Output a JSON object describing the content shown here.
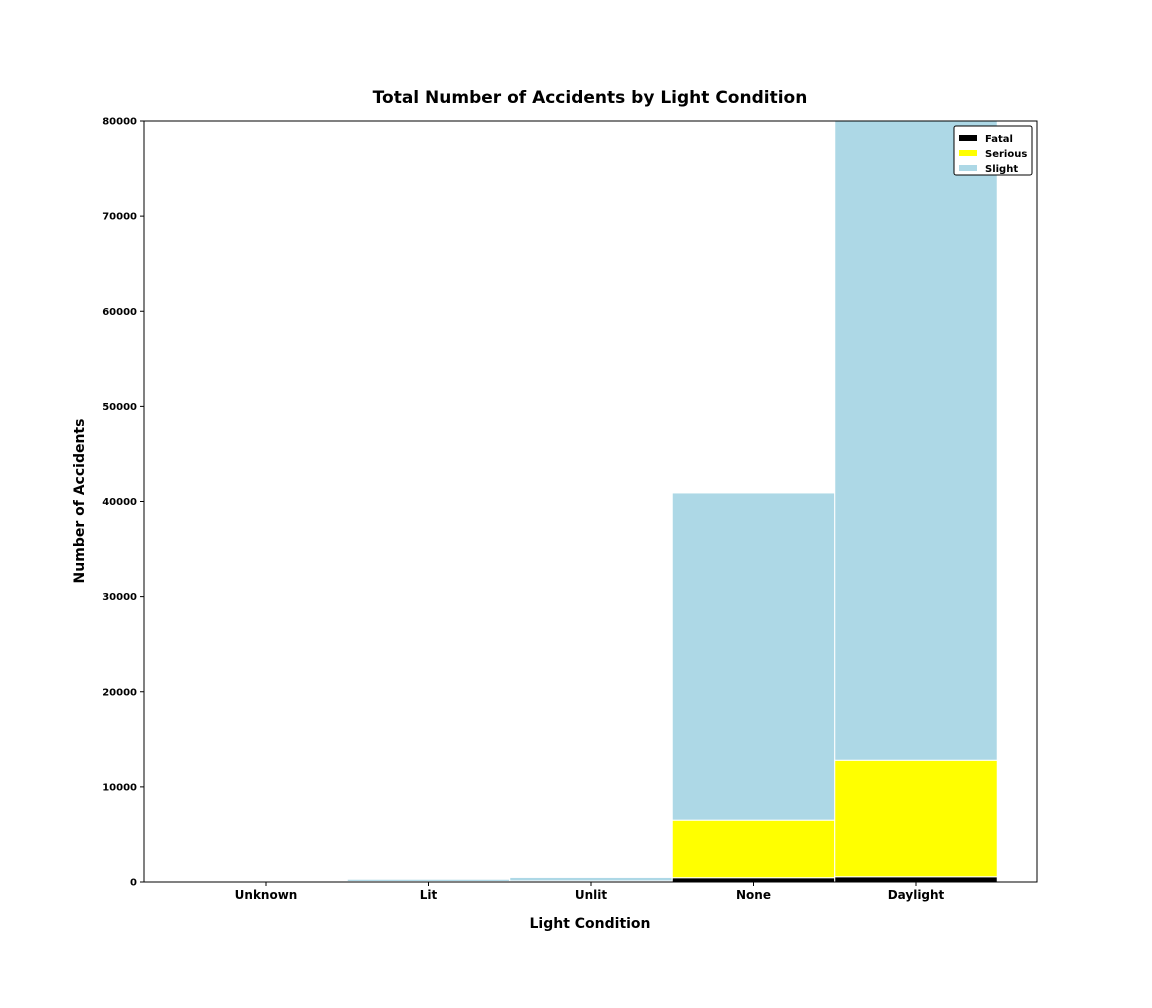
{
  "chart_data": {
    "type": "bar",
    "stacked": true,
    "title": "Total Number of Accidents by Light Condition",
    "xlabel": "Light Condition",
    "ylabel": "Number of Accidents",
    "categories": [
      "Unknown",
      "Lit",
      "Unlit",
      "None",
      "Daylight"
    ],
    "series": [
      {
        "name": "Fatal",
        "color": "#000000",
        "values": [
          5,
          10,
          30,
          450,
          550
        ]
      },
      {
        "name": "Serious",
        "color": "#ffff00",
        "values": [
          20,
          50,
          80,
          6050,
          12250
        ]
      },
      {
        "name": "Slight",
        "color": "#add8e6",
        "values": [
          100,
          230,
          370,
          34400,
          67500
        ]
      }
    ],
    "ylim": [
      0,
      80000
    ],
    "yticks": [
      0,
      10000,
      20000,
      30000,
      40000,
      50000,
      60000,
      70000,
      80000
    ],
    "grid": false,
    "legend_position": "top-right"
  }
}
